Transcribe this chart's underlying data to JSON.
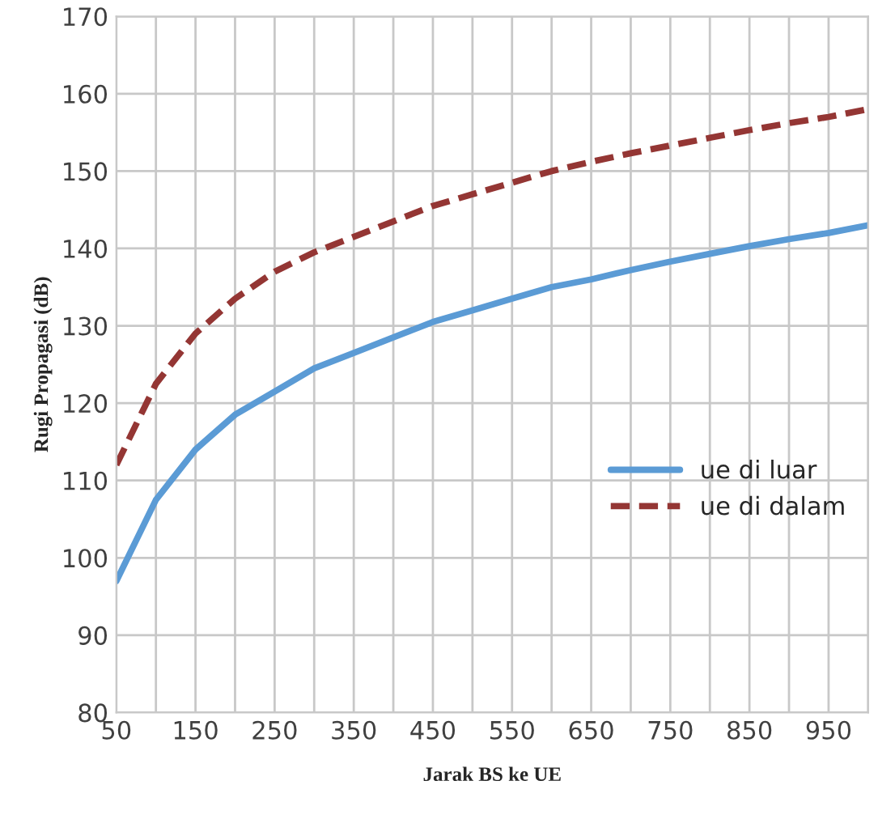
{
  "chart_data": {
    "type": "line",
    "xlabel": "Jarak BS ke UE",
    "ylabel": "Rugi Propagasi (dB)",
    "x": [
      50,
      100,
      150,
      200,
      250,
      300,
      350,
      400,
      450,
      500,
      550,
      600,
      650,
      700,
      750,
      800,
      850,
      900,
      950,
      1000
    ],
    "series": [
      {
        "name": "ue di luar",
        "color": "#5b9bd5",
        "line_style": "solid",
        "values": [
          97,
          107.5,
          114,
          118.5,
          121.5,
          124.5,
          126.5,
          128.5,
          130.5,
          132,
          133.5,
          135,
          136,
          137.2,
          138.3,
          139.3,
          140.3,
          141.2,
          142,
          143
        ]
      },
      {
        "name": "ue di dalam",
        "color": "#943634",
        "line_style": "dashed",
        "values": [
          112,
          122.5,
          129,
          133.5,
          137,
          139.5,
          141.5,
          143.5,
          145.5,
          147,
          148.5,
          150,
          151.2,
          152.3,
          153.3,
          154.3,
          155.3,
          156.2,
          157,
          158
        ]
      }
    ],
    "xlim": [
      50,
      1000
    ],
    "xticks": [
      50,
      {
        "value": 100,
        "label": null
      },
      150,
      {
        "value": 200,
        "label": null
      },
      250,
      {
        "value": 300,
        "label": null
      },
      350,
      {
        "value": 400,
        "label": null
      },
      450,
      {
        "value": 500,
        "label": null
      },
      550,
      {
        "value": 600,
        "label": null
      },
      650,
      {
        "value": 700,
        "label": null
      },
      750,
      {
        "value": 800,
        "label": null
      },
      850,
      {
        "value": 900,
        "label": null
      },
      950,
      {
        "value": 1000,
        "label": null
      }
    ],
    "ylim": [
      80,
      170
    ],
    "yticks": [
      80,
      90,
      100,
      110,
      120,
      130,
      140,
      150,
      160,
      170
    ],
    "grid": true,
    "legend": "right",
    "marker": "none"
  }
}
